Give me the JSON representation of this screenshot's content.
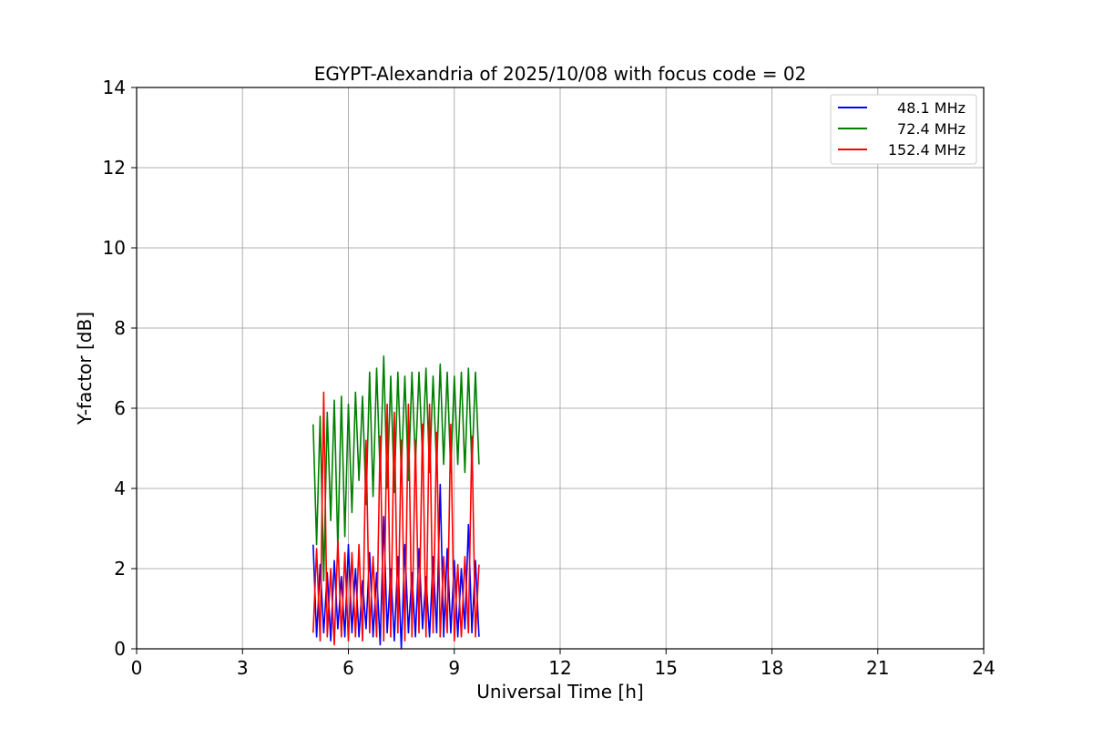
{
  "chart_data": {
    "type": "line",
    "title": "EGYPT-Alexandria of 2025/10/08 with focus code = 02",
    "xlabel": "Universal Time [h]",
    "ylabel": "Y-factor [dB]",
    "xlim": [
      0,
      24
    ],
    "ylim": [
      0,
      14
    ],
    "xticks": [
      0,
      3,
      6,
      9,
      12,
      15,
      18,
      21,
      24
    ],
    "yticks": [
      0,
      2,
      4,
      6,
      8,
      10,
      12,
      14
    ],
    "grid": true,
    "legend_position": "top-right",
    "series": [
      {
        "name": "48.1 MHz",
        "color": "#0000ff",
        "x": [
          5.0,
          5.1,
          5.2,
          5.3,
          5.4,
          5.5,
          5.6,
          5.7,
          5.8,
          5.9,
          6.0,
          6.1,
          6.2,
          6.3,
          6.4,
          6.5,
          6.6,
          6.7,
          6.8,
          6.9,
          7.0,
          7.1,
          7.2,
          7.3,
          7.4,
          7.5,
          7.6,
          7.7,
          7.8,
          7.9,
          8.0,
          8.1,
          8.2,
          8.3,
          8.4,
          8.5,
          8.6,
          8.7,
          8.8,
          8.9,
          9.0,
          9.1,
          9.2,
          9.3,
          9.4,
          9.5,
          9.6,
          9.7
        ],
        "y": [
          2.6,
          0.3,
          2.1,
          0.4,
          1.9,
          0.2,
          2.2,
          0.5,
          1.8,
          0.3,
          2.6,
          0.4,
          2.0,
          0.3,
          1.7,
          0.5,
          2.4,
          0.3,
          1.9,
          0.1,
          3.3,
          0.4,
          2.0,
          0.2,
          2.3,
          0.0,
          2.6,
          0.4,
          1.9,
          0.3,
          2.5,
          0.5,
          1.8,
          0.3,
          2.3,
          0.4,
          4.1,
          0.3,
          2.5,
          0.4,
          2.2,
          0.3,
          2.0,
          0.5,
          3.1,
          0.4,
          2.2,
          0.3
        ]
      },
      {
        "name": "72.4 MHz",
        "color": "#008000",
        "x": [
          5.0,
          5.1,
          5.2,
          5.3,
          5.4,
          5.5,
          5.6,
          5.7,
          5.8,
          5.9,
          6.0,
          6.1,
          6.2,
          6.3,
          6.4,
          6.5,
          6.6,
          6.7,
          6.8,
          6.9,
          7.0,
          7.1,
          7.2,
          7.3,
          7.4,
          7.5,
          7.6,
          7.7,
          7.8,
          7.9,
          8.0,
          8.1,
          8.2,
          8.3,
          8.4,
          8.5,
          8.6,
          8.7,
          8.8,
          8.9,
          9.0,
          9.1,
          9.2,
          9.3,
          9.4,
          9.5,
          9.6,
          9.7
        ],
        "y": [
          5.6,
          2.6,
          5.8,
          1.7,
          5.9,
          3.2,
          6.2,
          2.5,
          6.3,
          2.8,
          6.1,
          3.4,
          6.4,
          4.2,
          6.3,
          3.6,
          6.9,
          3.8,
          7.0,
          4.3,
          7.3,
          4.0,
          6.8,
          3.9,
          6.9,
          4.4,
          6.8,
          4.2,
          6.9,
          4.6,
          6.9,
          4.8,
          7.0,
          4.4,
          6.8,
          4.5,
          7.1,
          4.6,
          6.9,
          4.4,
          6.8,
          4.6,
          6.9,
          4.4,
          7.0,
          4.5,
          6.9,
          4.6
        ]
      },
      {
        "name": "152.4 MHz",
        "color": "#ff0000",
        "x": [
          5.0,
          5.1,
          5.2,
          5.3,
          5.4,
          5.5,
          5.6,
          5.7,
          5.8,
          5.9,
          6.0,
          6.1,
          6.2,
          6.3,
          6.4,
          6.5,
          6.6,
          6.7,
          6.8,
          6.9,
          7.0,
          7.1,
          7.2,
          7.3,
          7.4,
          7.5,
          7.6,
          7.7,
          7.8,
          7.9,
          8.0,
          8.1,
          8.2,
          8.3,
          8.4,
          8.5,
          8.6,
          8.7,
          8.8,
          8.9,
          9.0,
          9.1,
          9.2,
          9.3,
          9.4,
          9.5,
          9.6,
          9.7
        ],
        "y": [
          0.4,
          2.5,
          0.2,
          6.4,
          0.3,
          2.0,
          0.1,
          2.7,
          0.3,
          2.4,
          0.2,
          2.4,
          0.3,
          2.6,
          0.2,
          5.2,
          0.4,
          2.3,
          0.3,
          5.3,
          0.2,
          6.1,
          0.3,
          5.9,
          0.4,
          5.2,
          0.2,
          6.1,
          0.3,
          5.2,
          0.4,
          5.6,
          0.3,
          6.1,
          0.4,
          5.4,
          0.3,
          2.3,
          0.4,
          5.6,
          0.2,
          2.1,
          0.3,
          2.3,
          0.4,
          5.3,
          0.3,
          2.1
        ]
      }
    ]
  }
}
